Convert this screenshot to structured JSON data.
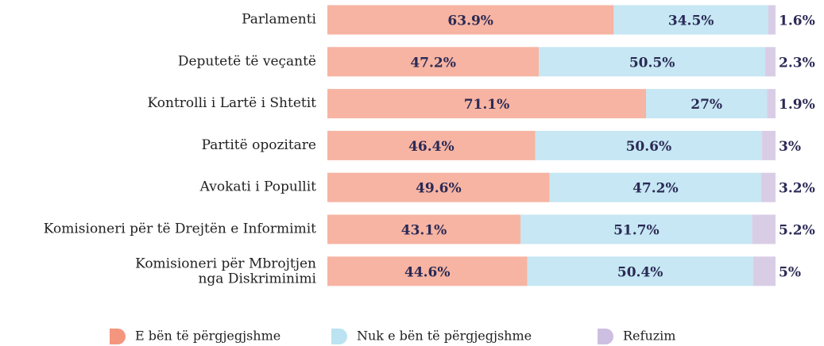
{
  "chart_data": {
    "type": "stacked-barh",
    "categories": [
      "Parlamenti",
      "Deputetë të veçantë",
      "Kontrolli i Lartë i Shtetit",
      "Partitë opozitare",
      "Avokati i Popullit",
      "Komisioneri për të Drejtën e Informimit",
      "Komisioneri për Mbrojtjen\nnga Diskriminimi"
    ],
    "series": [
      {
        "name": "E bën të përgjegjshme",
        "color": "#f7b4a2",
        "values": [
          63.9,
          47.2,
          71.1,
          46.4,
          49.6,
          43.1,
          44.6
        ],
        "value_labels": [
          "63.9%",
          "47.2%",
          "71.1%",
          "46.4%",
          "49.6%",
          "43.1%",
          "44.6%"
        ]
      },
      {
        "name": "Nuk e bën të përgjegjshme",
        "color": "#c6e7f3",
        "values": [
          34.5,
          50.5,
          27,
          50.6,
          47.2,
          51.7,
          50.4
        ],
        "value_labels": [
          "34.5%",
          "50.5%",
          "27%",
          "50.6%",
          "47.2%",
          "51.7%",
          "50.4%"
        ]
      },
      {
        "name": "Refuzim",
        "color": "#d9cde6",
        "values": [
          1.6,
          2.3,
          1.9,
          3,
          3.2,
          5.2,
          5
        ],
        "value_labels": [
          "1.6%",
          "2.3%",
          "1.9%",
          "3%",
          "3.2%",
          "5.2%",
          "5%"
        ]
      }
    ],
    "xlim": [
      0,
      100
    ]
  }
}
